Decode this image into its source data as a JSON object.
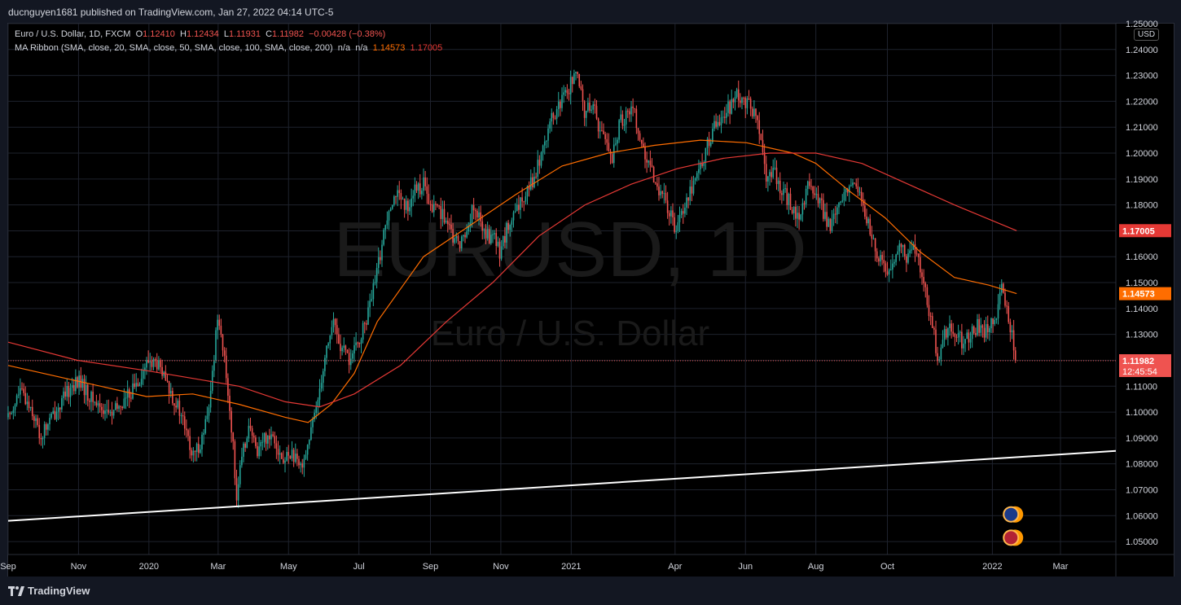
{
  "header": {
    "published": "ducnguyen1681 published on TradingView.com, Jan 27, 2022 04:14 UTC-5"
  },
  "legend": {
    "symbol": "Euro / U.S. Dollar, 1D, FXCM",
    "o_label": "O",
    "o_val": "1.12410",
    "h_label": "H",
    "h_val": "1.12434",
    "l_label": "L",
    "l_val": "1.11931",
    "c_label": "C",
    "c_val": "1.11982",
    "change": "−0.00428 (−0.38%)",
    "ma_label": "MA Ribbon (SMA, close, 20, SMA, close, 50, SMA, close, 100, SMA, close, 200)",
    "ma_na1": "n/a",
    "ma_na2": "n/a",
    "ma_v100": "1.14573",
    "ma_v200": "1.17005"
  },
  "currency": "USD",
  "watermark": {
    "symbol": "EURUSD, 1D",
    "name": "Euro / U.S. Dollar"
  },
  "branding": {
    "name": "TradingView"
  },
  "colors": {
    "up": "#26a69a",
    "down": "#ef5350",
    "sma100": "#ff6d00",
    "sma200": "#e53935",
    "trendline": "#ffffff",
    "grid": "#1e222d"
  },
  "chart_data": {
    "type": "candlestick",
    "symbol": "EURUSD",
    "timeframe": "1D",
    "ylim": [
      1.045,
      1.25
    ],
    "y_ticks": [
      "1.05000",
      "1.06000",
      "1.07000",
      "1.08000",
      "1.09000",
      "1.10000",
      "1.11000",
      "1.12000",
      "1.13000",
      "1.14000",
      "1.15000",
      "1.16000",
      "1.17000",
      "1.18000",
      "1.19000",
      "1.20000",
      "1.21000",
      "1.22000",
      "1.23000",
      "1.24000",
      "1.25000"
    ],
    "x_ticks": [
      {
        "label": "Sep",
        "t": 0
      },
      {
        "label": "Nov",
        "t": 61
      },
      {
        "label": "2020",
        "t": 122
      },
      {
        "label": "Mar",
        "t": 182
      },
      {
        "label": "May",
        "t": 243
      },
      {
        "label": "Jul",
        "t": 304
      },
      {
        "label": "Sep",
        "t": 366
      },
      {
        "label": "Nov",
        "t": 427
      },
      {
        "label": "2021",
        "t": 488
      },
      {
        "label": "Apr",
        "t": 578
      },
      {
        "label": "Jun",
        "t": 639
      },
      {
        "label": "Aug",
        "t": 700
      },
      {
        "label": "Oct",
        "t": 762
      },
      {
        "label": "2022",
        "t": 853
      },
      {
        "label": "Mar",
        "t": 912
      }
    ],
    "t_max": 960,
    "price_anchors": [
      [
        0,
        1.098
      ],
      [
        10,
        1.108
      ],
      [
        20,
        1.102
      ],
      [
        28,
        1.09
      ],
      [
        35,
        1.096
      ],
      [
        45,
        1.103
      ],
      [
        55,
        1.11
      ],
      [
        62,
        1.112
      ],
      [
        70,
        1.106
      ],
      [
        80,
        1.102
      ],
      [
        90,
        1.099
      ],
      [
        100,
        1.104
      ],
      [
        108,
        1.109
      ],
      [
        116,
        1.115
      ],
      [
        122,
        1.12
      ],
      [
        130,
        1.118
      ],
      [
        138,
        1.11
      ],
      [
        145,
        1.104
      ],
      [
        152,
        1.096
      ],
      [
        160,
        1.082
      ],
      [
        168,
        1.09
      ],
      [
        174,
        1.1
      ],
      [
        178,
        1.12
      ],
      [
        182,
        1.14
      ],
      [
        185,
        1.128
      ],
      [
        190,
        1.11
      ],
      [
        194,
        1.092
      ],
      [
        198,
        1.068
      ],
      [
        202,
        1.08
      ],
      [
        208,
        1.095
      ],
      [
        215,
        1.085
      ],
      [
        222,
        1.09
      ],
      [
        230,
        1.092
      ],
      [
        238,
        1.08
      ],
      [
        245,
        1.085
      ],
      [
        252,
        1.078
      ],
      [
        258,
        1.085
      ],
      [
        264,
        1.095
      ],
      [
        270,
        1.11
      ],
      [
        276,
        1.125
      ],
      [
        282,
        1.135
      ],
      [
        288,
        1.125
      ],
      [
        296,
        1.12
      ],
      [
        302,
        1.125
      ],
      [
        310,
        1.135
      ],
      [
        318,
        1.15
      ],
      [
        324,
        1.165
      ],
      [
        330,
        1.18
      ],
      [
        336,
        1.185
      ],
      [
        344,
        1.178
      ],
      [
        352,
        1.185
      ],
      [
        360,
        1.188
      ],
      [
        366,
        1.178
      ],
      [
        372,
        1.18
      ],
      [
        378,
        1.175
      ],
      [
        384,
        1.168
      ],
      [
        390,
        1.165
      ],
      [
        396,
        1.168
      ],
      [
        402,
        1.178
      ],
      [
        408,
        1.175
      ],
      [
        414,
        1.168
      ],
      [
        420,
        1.168
      ],
      [
        426,
        1.162
      ],
      [
        432,
        1.17
      ],
      [
        438,
        1.175
      ],
      [
        444,
        1.18
      ],
      [
        450,
        1.188
      ],
      [
        456,
        1.19
      ],
      [
        462,
        1.2
      ],
      [
        468,
        1.21
      ],
      [
        474,
        1.215
      ],
      [
        480,
        1.22
      ],
      [
        486,
        1.225
      ],
      [
        491,
        1.232
      ],
      [
        495,
        1.225
      ],
      [
        500,
        1.215
      ],
      [
        506,
        1.22
      ],
      [
        512,
        1.21
      ],
      [
        518,
        1.205
      ],
      [
        524,
        1.198
      ],
      [
        530,
        1.212
      ],
      [
        536,
        1.215
      ],
      [
        542,
        1.218
      ],
      [
        548,
        1.205
      ],
      [
        554,
        1.195
      ],
      [
        560,
        1.19
      ],
      [
        566,
        1.185
      ],
      [
        572,
        1.178
      ],
      [
        578,
        1.172
      ],
      [
        584,
        1.178
      ],
      [
        590,
        1.185
      ],
      [
        596,
        1.19
      ],
      [
        602,
        1.198
      ],
      [
        608,
        1.205
      ],
      [
        614,
        1.212
      ],
      [
        620,
        1.215
      ],
      [
        626,
        1.218
      ],
      [
        632,
        1.222
      ],
      [
        638,
        1.22
      ],
      [
        644,
        1.218
      ],
      [
        650,
        1.21
      ],
      [
        654,
        1.198
      ],
      [
        658,
        1.19
      ],
      [
        664,
        1.192
      ],
      [
        670,
        1.186
      ],
      [
        676,
        1.182
      ],
      [
        682,
        1.176
      ],
      [
        688,
        1.178
      ],
      [
        694,
        1.188
      ],
      [
        700,
        1.184
      ],
      [
        706,
        1.178
      ],
      [
        712,
        1.172
      ],
      [
        718,
        1.176
      ],
      [
        724,
        1.182
      ],
      [
        730,
        1.19
      ],
      [
        736,
        1.185
      ],
      [
        742,
        1.178
      ],
      [
        748,
        1.168
      ],
      [
        754,
        1.16
      ],
      [
        760,
        1.155
      ],
      [
        766,
        1.158
      ],
      [
        772,
        1.165
      ],
      [
        778,
        1.16
      ],
      [
        784,
        1.165
      ],
      [
        790,
        1.157
      ],
      [
        794,
        1.15
      ],
      [
        798,
        1.138
      ],
      [
        802,
        1.13
      ],
      [
        806,
        1.121
      ],
      [
        810,
        1.128
      ],
      [
        816,
        1.135
      ],
      [
        822,
        1.13
      ],
      [
        828,
        1.126
      ],
      [
        834,
        1.13
      ],
      [
        840,
        1.133
      ],
      [
        846,
        1.13
      ],
      [
        852,
        1.135
      ],
      [
        858,
        1.14
      ],
      [
        861,
        1.148
      ],
      [
        864,
        1.142
      ],
      [
        867,
        1.135
      ],
      [
        870,
        1.13
      ],
      [
        874,
        1.12
      ]
    ],
    "sma100_anchors": [
      [
        0,
        1.118
      ],
      [
        60,
        1.112
      ],
      [
        120,
        1.106
      ],
      [
        160,
        1.107
      ],
      [
        200,
        1.103
      ],
      [
        240,
        1.098
      ],
      [
        260,
        1.096
      ],
      [
        280,
        1.103
      ],
      [
        300,
        1.115
      ],
      [
        320,
        1.135
      ],
      [
        360,
        1.16
      ],
      [
        400,
        1.172
      ],
      [
        440,
        1.184
      ],
      [
        480,
        1.195
      ],
      [
        520,
        1.2
      ],
      [
        560,
        1.203
      ],
      [
        600,
        1.205
      ],
      [
        640,
        1.204
      ],
      [
        680,
        1.2
      ],
      [
        700,
        1.196
      ],
      [
        730,
        1.185
      ],
      [
        760,
        1.175
      ],
      [
        790,
        1.162
      ],
      [
        820,
        1.152
      ],
      [
        850,
        1.149
      ],
      [
        874,
        1.14573
      ]
    ],
    "sma200_anchors": [
      [
        0,
        1.127
      ],
      [
        60,
        1.12
      ],
      [
        120,
        1.116
      ],
      [
        160,
        1.113
      ],
      [
        200,
        1.11
      ],
      [
        240,
        1.104
      ],
      [
        270,
        1.102
      ],
      [
        300,
        1.107
      ],
      [
        340,
        1.118
      ],
      [
        380,
        1.135
      ],
      [
        420,
        1.15
      ],
      [
        460,
        1.168
      ],
      [
        500,
        1.18
      ],
      [
        540,
        1.188
      ],
      [
        580,
        1.194
      ],
      [
        620,
        1.198
      ],
      [
        660,
        1.2
      ],
      [
        700,
        1.2
      ],
      [
        740,
        1.196
      ],
      [
        780,
        1.188
      ],
      [
        820,
        1.18
      ],
      [
        874,
        1.17005
      ]
    ],
    "trendline": [
      [
        0,
        1.058
      ],
      [
        960,
        1.085
      ]
    ],
    "current_price": 1.11982,
    "price_labels": {
      "last": "1.11982",
      "countdown": "12:45:54",
      "sma100": "1.14573",
      "sma200": "1.17005"
    }
  }
}
